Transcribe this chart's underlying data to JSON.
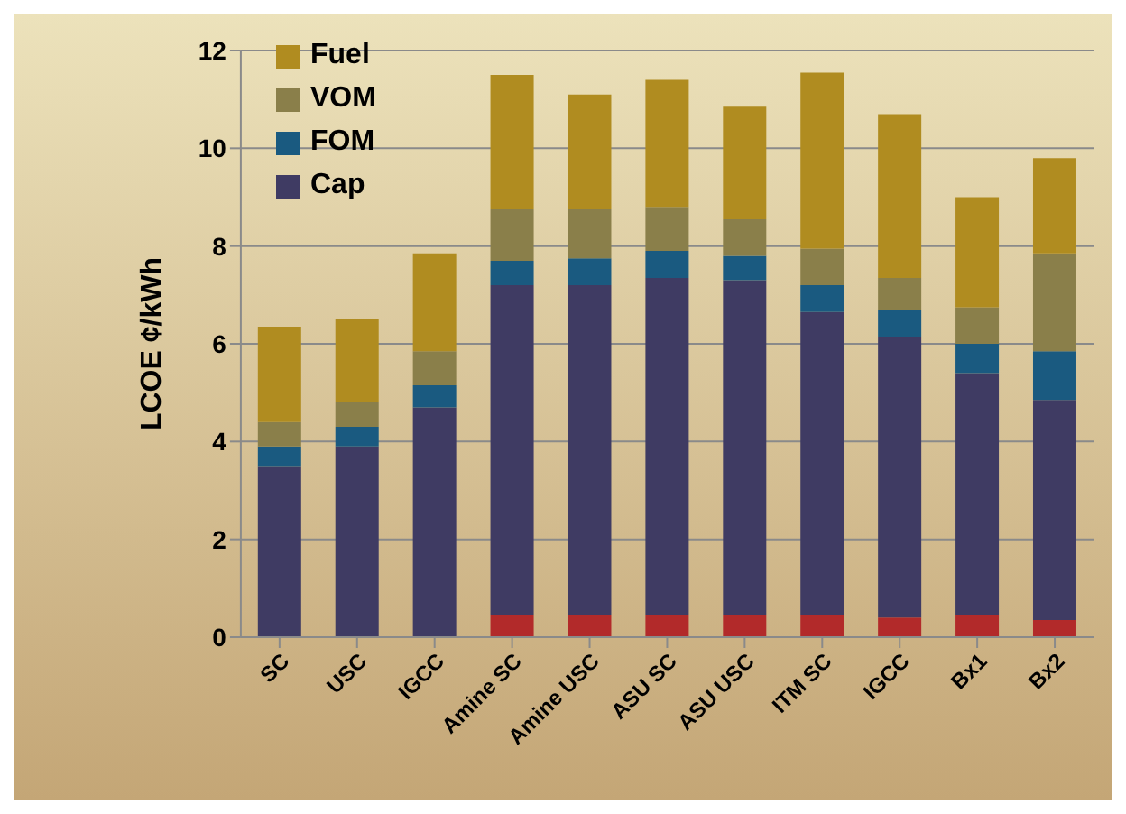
{
  "chart_data": {
    "type": "bar",
    "stacked": true,
    "ylabel": "LCOE ¢/kWh",
    "categories": [
      "SC",
      "USC",
      "IGCC",
      "Amine SC",
      "Amine USC",
      "ASU SC",
      "ASU USC",
      "ITM SC",
      "IGCC",
      "Bx1",
      "Bx2"
    ],
    "series": [
      {
        "color": "#b22a2a",
        "values": [
          null,
          null,
          null,
          0.45,
          0.45,
          0.45,
          0.45,
          0.45,
          0.4,
          0.45,
          0.35
        ]
      },
      {
        "name": "Cap",
        "color": "#3f3b63",
        "values": [
          3.5,
          3.9,
          4.7,
          6.75,
          6.75,
          6.9,
          6.85,
          6.2,
          5.75,
          4.95,
          4.5
        ]
      },
      {
        "name": "FOM",
        "color": "#1a5a80",
        "values": [
          0.4,
          0.4,
          0.45,
          0.5,
          0.55,
          0.55,
          0.5,
          0.55,
          0.55,
          0.6,
          1.0
        ]
      },
      {
        "name": "VOM",
        "color": "#8a7f4a",
        "values": [
          0.5,
          0.5,
          0.7,
          1.05,
          1.0,
          0.9,
          0.75,
          0.75,
          0.65,
          0.75,
          2.0
        ]
      },
      {
        "name": "Fuel",
        "color": "#b08c20",
        "values": [
          1.95,
          1.7,
          2.0,
          2.75,
          2.35,
          2.6,
          2.3,
          3.6,
          3.35,
          2.25,
          1.95
        ]
      }
    ],
    "ylim": [
      0,
      12
    ],
    "yticks": [
      0,
      2,
      4,
      6,
      8,
      10,
      12
    ],
    "grid": "y",
    "legend": "top left"
  }
}
